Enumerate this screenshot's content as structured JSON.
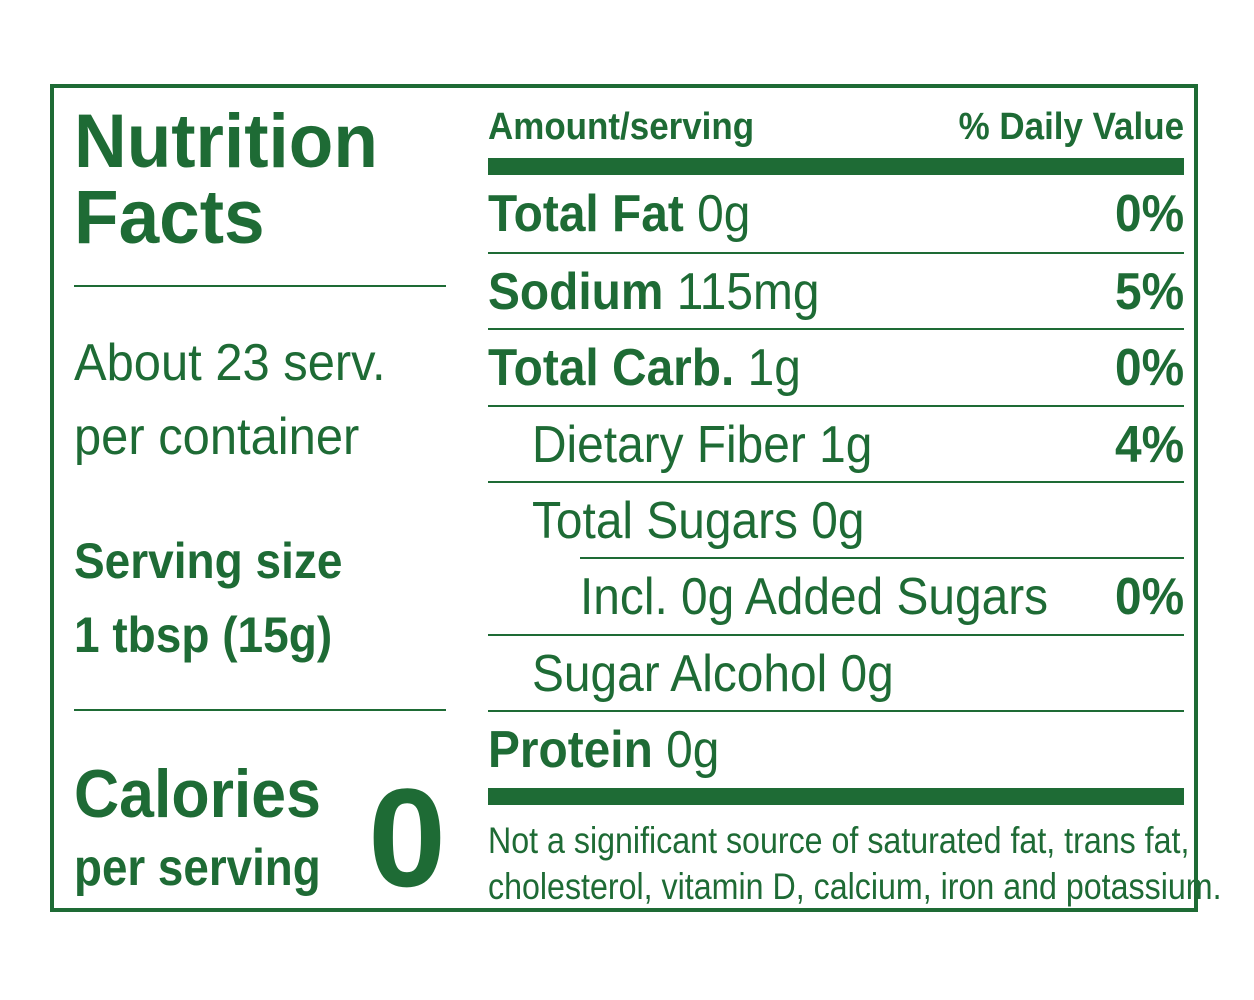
{
  "label": {
    "title_line1": "Nutrition",
    "title_line2": "Facts",
    "servings_line1": "About 23 serv.",
    "servings_line2": "per container",
    "serving_size_line1": "Serving size",
    "serving_size_line2": "1 tbsp (15g)",
    "calories_label": "Calories",
    "calories_sub": "per serving",
    "calories_value": "0",
    "header_amount": "Amount/serving",
    "header_dv": "% Daily Value",
    "rows": [
      {
        "name": "Total Fat",
        "amount": "0g",
        "dv": "0%"
      },
      {
        "name": "Sodium",
        "amount": "115mg",
        "dv": "5%"
      },
      {
        "name": "Total Carb.",
        "amount": "1g",
        "dv": "0%"
      },
      {
        "name": "Dietary Fiber 1g",
        "amount": "",
        "dv": "4%"
      },
      {
        "name": "Total Sugars 0g",
        "amount": "",
        "dv": ""
      },
      {
        "name": "Incl. 0g Added Sugars",
        "amount": "",
        "dv": "0%"
      },
      {
        "name": "Sugar Alcohol 0g",
        "amount": "",
        "dv": ""
      },
      {
        "name": "Protein",
        "amount": "0g",
        "dv": ""
      }
    ],
    "footnote_line1": "Not a significant source of saturated fat, trans fat,",
    "footnote_line2": "cholesterol, vitamin D, calcium, iron and potassium.",
    "color": "#1e6b35"
  }
}
